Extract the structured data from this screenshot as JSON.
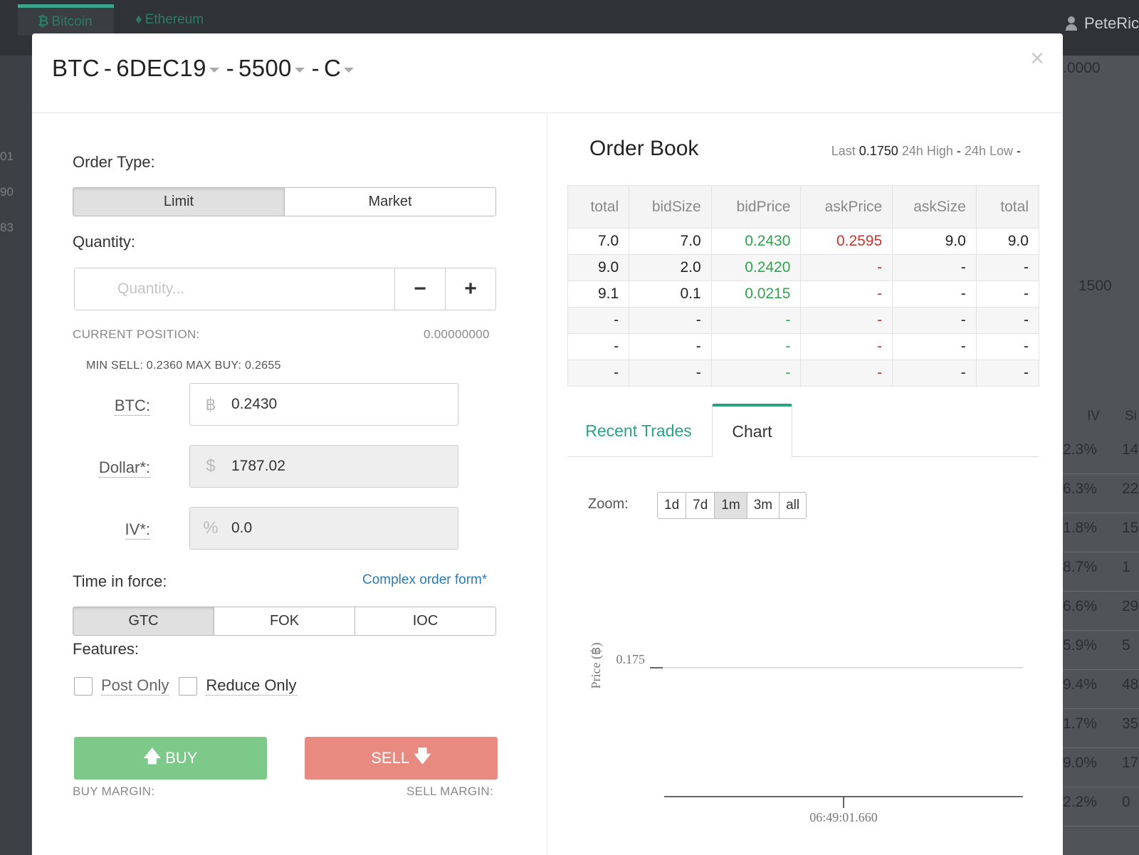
{
  "background": {
    "tabs": [
      {
        "label": "Bitcoin",
        "icon": "bitcoin-icon",
        "active": true
      },
      {
        "label": "Ethereum",
        "icon": "ethereum-icon",
        "active": false
      }
    ],
    "user": "PeteRic",
    "left_numbers": [
      "01",
      "90",
      "83"
    ],
    "right_values": {
      "top_value": ".0000",
      "select_value": "1500",
      "col_iv": "IV",
      "col_si": "Si",
      "iv_rows": [
        "2.3%",
        "6.3%",
        "1.8%",
        "8.7%",
        "6.6%",
        "5.9%",
        "9.4%",
        "1.7%",
        "9.0%",
        "2.2%"
      ],
      "si_rows": [
        "14",
        "22",
        "15",
        "1",
        "29",
        "5",
        "48",
        "35",
        "17",
        "0"
      ]
    }
  },
  "modal": {
    "title": {
      "asset": "BTC",
      "expiry": "6DEC19",
      "strike": "5500",
      "type": "C",
      "separator": "-"
    },
    "close": "×",
    "order_form": {
      "order_type_label": "Order Type:",
      "order_types": [
        "Limit",
        "Market"
      ],
      "order_type_selected": "Limit",
      "quantity_label": "Quantity:",
      "quantity_placeholder": "Quantity...",
      "quantity_value": "",
      "minus": "−",
      "plus": "+",
      "current_position_label": "CURRENT POSITION:",
      "current_position_value": "0.00000000",
      "minmax": "MIN SELL:  0.2360   MAX BUY:  0.2655",
      "btc_label": "BTC:",
      "btc_icon": "฿",
      "btc_value": "0.2430",
      "dollar_label": "Dollar*:",
      "dollar_icon": "$",
      "dollar_value": "1787.02",
      "iv_label": "IV*:",
      "iv_icon": "%",
      "iv_value": "0.0",
      "tif_label": "Time in force:",
      "complex_link": "Complex order form*",
      "tif_options": [
        "GTC",
        "FOK",
        "IOC"
      ],
      "tif_selected": "GTC",
      "features_label": "Features:",
      "post_only": "Post Only",
      "reduce_only": "Reduce Only",
      "buy_label": "BUY",
      "sell_label": "SELL",
      "buy_margin": "BUY MARGIN:",
      "sell_margin": "SELL MARGIN:",
      "colors": {
        "buy": "#7cc98a",
        "sell": "#e88a80",
        "accent": "#2aa382"
      }
    },
    "order_book": {
      "title": "Order Book",
      "last_label": "Last",
      "last_value": "0.1750",
      "high_label": "24h High",
      "high_value": "-",
      "low_label": "24h Low",
      "low_value": "-",
      "columns": [
        "total",
        "bidSize",
        "bidPrice",
        "askPrice",
        "askSize",
        "total"
      ],
      "rows": [
        [
          "7.0",
          "7.0",
          "0.2430",
          "0.2595",
          "9.0",
          "9.0"
        ],
        [
          "9.0",
          "2.0",
          "0.2420",
          "-",
          "-",
          "-"
        ],
        [
          "9.1",
          "0.1",
          "0.0215",
          "-",
          "-",
          "-"
        ],
        [
          "-",
          "-",
          "-",
          "-",
          "-",
          "-"
        ],
        [
          "-",
          "-",
          "-",
          "-",
          "-",
          "-"
        ],
        [
          "-",
          "-",
          "-",
          "-",
          "-",
          "-"
        ]
      ]
    },
    "tabs": [
      "Recent Trades",
      "Chart"
    ],
    "tab_selected": "Chart",
    "zoom_label": "Zoom:",
    "zoom_options": [
      "1d",
      "7d",
      "1m",
      "3m",
      "all"
    ],
    "zoom_selected": "1m",
    "chart_data": {
      "type": "line",
      "ylabel": "Price (฿)",
      "xlabel": "",
      "yticks": [
        "0.175"
      ],
      "xticks": [
        "06:49:01.660"
      ],
      "series": [
        {
          "values": [
            0.175
          ]
        }
      ]
    }
  }
}
